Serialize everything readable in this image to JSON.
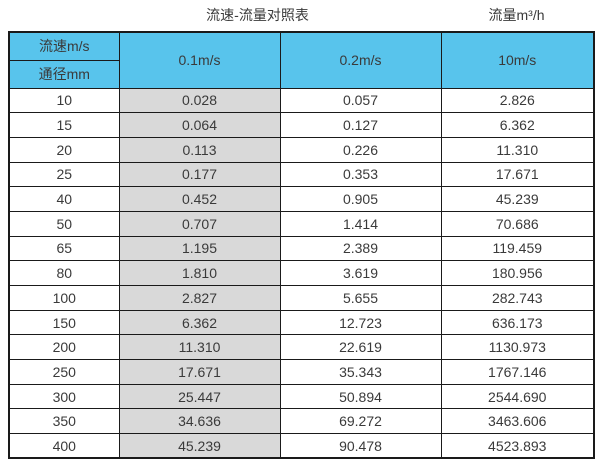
{
  "caption": {
    "title": "流速-流量对照表",
    "unit": "流量m³/h"
  },
  "table": {
    "corner_top": "流速m/s",
    "corner_bottom": "通径mm",
    "speed_columns": [
      "0.1m/s",
      "0.2m/s",
      "10m/s"
    ],
    "rows": [
      {
        "diameter": "10",
        "v01": "0.028",
        "v02": "0.057",
        "v10": "2.826"
      },
      {
        "diameter": "15",
        "v01": "0.064",
        "v02": "0.127",
        "v10": "6.362"
      },
      {
        "diameter": "20",
        "v01": "0.113",
        "v02": "0.226",
        "v10": "11.310"
      },
      {
        "diameter": "25",
        "v01": "0.177",
        "v02": "0.353",
        "v10": "17.671"
      },
      {
        "diameter": "40",
        "v01": "0.452",
        "v02": "0.905",
        "v10": "45.239"
      },
      {
        "diameter": "50",
        "v01": "0.707",
        "v02": "1.414",
        "v10": "70.686"
      },
      {
        "diameter": "65",
        "v01": "1.195",
        "v02": "2.389",
        "v10": "119.459"
      },
      {
        "diameter": "80",
        "v01": "1.810",
        "v02": "3.619",
        "v10": "180.956"
      },
      {
        "diameter": "100",
        "v01": "2.827",
        "v02": "5.655",
        "v10": "282.743"
      },
      {
        "diameter": "150",
        "v01": "6.362",
        "v02": "12.723",
        "v10": "636.173"
      },
      {
        "diameter": "200",
        "v01": "11.310",
        "v02": "22.619",
        "v10": "1130.973"
      },
      {
        "diameter": "250",
        "v01": "17.671",
        "v02": "35.343",
        "v10": "1767.146"
      },
      {
        "diameter": "300",
        "v01": "25.447",
        "v02": "50.894",
        "v10": "2544.690"
      },
      {
        "diameter": "350",
        "v01": "34.636",
        "v02": "69.272",
        "v10": "3463.606"
      },
      {
        "diameter": "400",
        "v01": "45.239",
        "v02": "90.478",
        "v10": "4523.893"
      }
    ]
  },
  "colors": {
    "header_blue": "#58C4EC",
    "header_blue_dark": "#74B6D4",
    "gray_column": "#D9D9D9",
    "border": "#1A1A1A",
    "text": "#3A3A3A"
  },
  "chart_data": {
    "type": "table",
    "title": "流速-流量对照表",
    "unit_label": "流量m³/h",
    "columns": [
      "通径mm",
      "0.1m/s",
      "0.2m/s",
      "10m/s"
    ],
    "rows": [
      [
        10,
        0.028,
        0.057,
        2.826
      ],
      [
        15,
        0.064,
        0.127,
        6.362
      ],
      [
        20,
        0.113,
        0.226,
        11.31
      ],
      [
        25,
        0.177,
        0.353,
        17.671
      ],
      [
        40,
        0.452,
        0.905,
        45.239
      ],
      [
        50,
        0.707,
        1.414,
        70.686
      ],
      [
        65,
        1.195,
        2.389,
        119.459
      ],
      [
        80,
        1.81,
        3.619,
        180.956
      ],
      [
        100,
        2.827,
        5.655,
        282.743
      ],
      [
        150,
        6.362,
        12.723,
        636.173
      ],
      [
        200,
        11.31,
        22.619,
        1130.973
      ],
      [
        250,
        17.671,
        35.343,
        1767.146
      ],
      [
        300,
        25.447,
        50.894,
        2544.69
      ],
      [
        350,
        34.636,
        69.272,
        3463.606
      ],
      [
        400,
        45.239,
        90.478,
        4523.893
      ]
    ]
  }
}
